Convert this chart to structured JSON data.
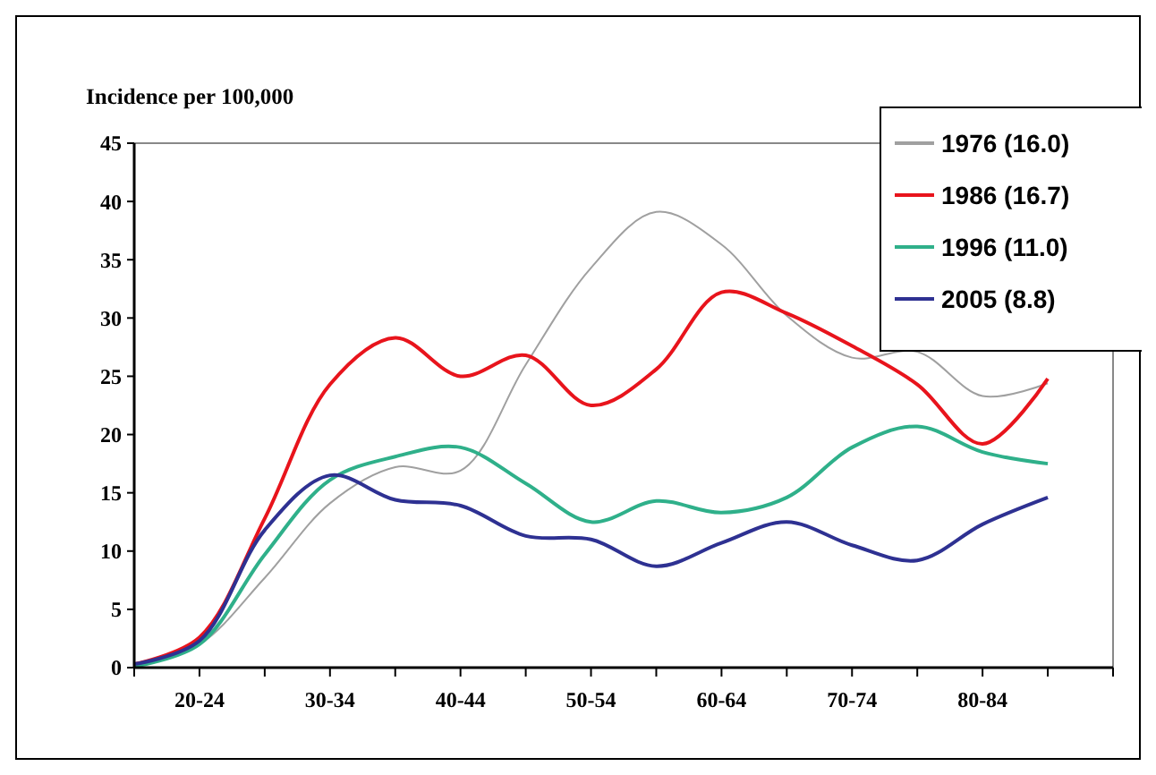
{
  "chart_data": {
    "type": "line",
    "ylabel": "Incidence per 100,000",
    "categories": [
      null,
      "20-24",
      null,
      "30-34",
      null,
      "40-44",
      null,
      "50-54",
      null,
      "60-64",
      null,
      "70-74",
      null,
      "80-84",
      null,
      null
    ],
    "ylim": [
      0,
      45
    ],
    "yticks": [
      0,
      5,
      10,
      15,
      20,
      25,
      30,
      35,
      40,
      45
    ],
    "grid": false,
    "legend": "top right",
    "marker": "none",
    "line_style": "solid",
    "series": [
      {
        "name": "1976 (16.0)",
        "color": "#a0a0a0",
        "values": [
          0.2,
          2.0,
          7.7,
          14.1,
          17.2,
          16.9,
          26,
          34.3,
          39.1,
          36.3,
          30.2,
          26.6,
          27.1,
          23.3,
          24.4,
          null
        ]
      },
      {
        "name": "1986 (16.7)",
        "color": "#e8141c",
        "values": [
          0.3,
          2.6,
          12.8,
          24.3,
          28.3,
          25,
          26.8,
          22.5,
          25.6,
          32.2,
          30.4,
          27.6,
          24.3,
          19.2,
          24.8,
          null
        ]
      },
      {
        "name": "1996 (11.0)",
        "color": "#2fb08a",
        "values": [
          0.1,
          2.0,
          9.7,
          16.1,
          18.1,
          18.9,
          15.8,
          12.5,
          14.3,
          13.3,
          14.6,
          18.9,
          20.7,
          18.5,
          17.5,
          null
        ]
      },
      {
        "name": "2005 (8.8)",
        "color": "#2e3192",
        "values": [
          0.3,
          2.3,
          11.8,
          16.5,
          14.4,
          13.9,
          11.3,
          11.0,
          8.7,
          10.7,
          12.5,
          10.5,
          9.2,
          12.3,
          14.6,
          null
        ]
      }
    ]
  }
}
